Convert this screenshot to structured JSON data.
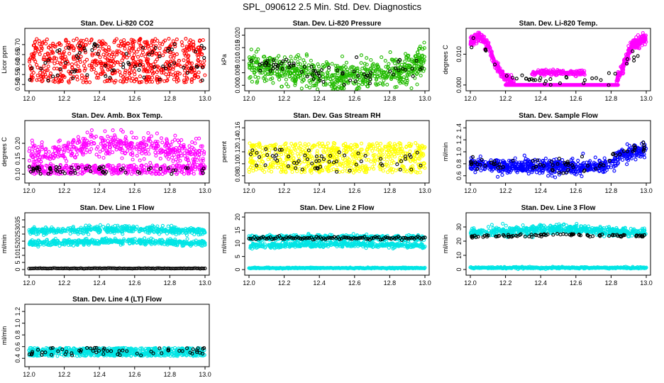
{
  "page_title": "SPL_090612  2.5 Min. Std. Dev. Diagnostics",
  "colors": {
    "red": "#ff0000",
    "green": "#22bb00",
    "magenta": "#ff00ff",
    "yellow": "#ffff00",
    "blue": "#0000ff",
    "cyan": "#00e5e5",
    "black": "#000000"
  },
  "chart_data": [
    {
      "type": "scatter",
      "title": "Stan. Dev. Li-820 CO2",
      "ylabel": "Licor ppm",
      "xlim": [
        12.0,
        13.0
      ],
      "xticks": [
        "12.0",
        "12.2",
        "12.4",
        "12.6",
        "12.8",
        "13.0"
      ],
      "ylim": [
        0.49,
        0.76
      ],
      "yticks": [
        "0.50",
        "0.55",
        "0.60",
        "0.65",
        "0.70"
      ],
      "ytick_vals": [
        0.5,
        0.55,
        0.6,
        0.65,
        0.7
      ],
      "color": "red",
      "series": [
        {
          "color": "red",
          "pattern": "band",
          "count": 700,
          "lo": 0.51,
          "hi": 0.73
        },
        {
          "color": "black",
          "pattern": "band",
          "count": 70,
          "lo": 0.52,
          "hi": 0.72
        }
      ]
    },
    {
      "type": "scatter",
      "title": "Stan. Dev. Li-820 Pressure",
      "ylabel": "kPa",
      "xlim": [
        12.0,
        13.0
      ],
      "xticks": [
        "12.0",
        "12.2",
        "12.4",
        "12.6",
        "12.8",
        "13.0"
      ],
      "ylim": [
        -0.0005,
        0.021
      ],
      "yticks": [
        "0.000",
        "0.005",
        "0.010",
        "0.015",
        "0.020"
      ],
      "ytick_vals": [
        0.0,
        0.005,
        0.01,
        0.015,
        0.02
      ],
      "series": [
        {
          "color": "green",
          "pattern": "curve",
          "count": 700,
          "curve": [
            [
              12.0,
              0.008
            ],
            [
              12.2,
              0.006
            ],
            [
              12.5,
              0.003
            ],
            [
              12.7,
              0.004
            ],
            [
              12.9,
              0.007
            ],
            [
              13.0,
              0.01
            ]
          ],
          "spread": 0.003
        },
        {
          "color": "black",
          "pattern": "curve",
          "count": 70,
          "curve": [
            [
              12.0,
              0.009
            ],
            [
              12.3,
              0.006
            ],
            [
              12.6,
              0.004
            ],
            [
              12.9,
              0.008
            ],
            [
              13.0,
              0.01
            ]
          ],
          "spread": 0.002
        }
      ]
    },
    {
      "type": "scatter",
      "title": "Stan. Dev. Li-820 Temp.",
      "ylabel": "degrees C",
      "xlim": [
        12.0,
        13.0
      ],
      "xticks": [
        "12.0",
        "12.2",
        "12.4",
        "12.6",
        "12.8",
        "13.0"
      ],
      "ylim": [
        -0.0005,
        0.017
      ],
      "yticks": [
        "0.000",
        "0.010"
      ],
      "ytick_vals": [
        0.0,
        0.01
      ],
      "series": [
        {
          "color": "magenta",
          "pattern": "curve",
          "count": 260,
          "curve": [
            [
              12.0,
              0.014
            ],
            [
              12.05,
              0.016
            ],
            [
              12.1,
              0.013
            ],
            [
              12.15,
              0.006
            ],
            [
              12.2,
              0.002
            ],
            [
              12.25,
              0.001
            ]
          ],
          "spread": 0.0008
        },
        {
          "color": "magenta",
          "pattern": "curve",
          "count": 260,
          "curve": [
            [
              12.83,
              0.001
            ],
            [
              12.87,
              0.006
            ],
            [
              12.92,
              0.013
            ],
            [
              13.0,
              0.015
            ]
          ],
          "spread": 0.0008
        },
        {
          "color": "magenta",
          "pattern": "line",
          "count": 160,
          "x0": 12.35,
          "x1": 12.65,
          "y": 0.004,
          "spread": 0.0004
        },
        {
          "color": "magenta",
          "pattern": "line",
          "count": 260,
          "x0": 12.2,
          "x1": 12.84,
          "y": 0.0,
          "spread": 0.0
        },
        {
          "color": "black",
          "pattern": "curve",
          "count": 40,
          "curve": [
            [
              12.0,
              0.015
            ],
            [
              12.1,
              0.012
            ],
            [
              12.2,
              0.003
            ],
            [
              12.4,
              0.001
            ],
            [
              12.8,
              0.002
            ],
            [
              12.9,
              0.009
            ],
            [
              13.0,
              0.01
            ]
          ],
          "spread": 0.001
        }
      ]
    },
    {
      "type": "scatter",
      "title": "Stan. Dev. Amb. Box Temp.",
      "ylabel": "degrees C",
      "xlim": [
        12.0,
        13.0
      ],
      "xticks": [
        "12.0",
        "12.2",
        "12.4",
        "12.6",
        "12.8",
        "13.0"
      ],
      "ylim": [
        0.085,
        0.26
      ],
      "yticks": [
        "0.10",
        "0.15",
        "0.20"
      ],
      "ytick_vals": [
        0.1,
        0.15,
        0.2
      ],
      "series": [
        {
          "color": "magenta",
          "pattern": "curve",
          "count": 450,
          "curve": [
            [
              12.0,
              0.16
            ],
            [
              12.3,
              0.19
            ],
            [
              12.5,
              0.2
            ],
            [
              12.7,
              0.19
            ],
            [
              13.0,
              0.16
            ]
          ],
          "spread": 0.02
        },
        {
          "color": "magenta",
          "pattern": "band",
          "count": 350,
          "lo": 0.1,
          "hi": 0.13
        },
        {
          "color": "black",
          "pattern": "band",
          "count": 60,
          "lo": 0.1,
          "hi": 0.125
        }
      ]
    },
    {
      "type": "scatter",
      "title": "Stan. Dev. Gas Stream RH",
      "ylabel": "percent",
      "xlim": [
        12.0,
        13.0
      ],
      "xticks": [
        "12.0",
        "12.2",
        "12.4",
        "12.6",
        "12.8",
        "13.0"
      ],
      "ylim": [
        0.075,
        0.165
      ],
      "yticks": [
        "0.08",
        "0.10",
        "0.12",
        "0.14",
        "0.16"
      ],
      "ytick_vals": [
        0.08,
        0.1,
        0.12,
        0.14,
        0.16
      ],
      "series": [
        {
          "color": "yellow",
          "pattern": "band",
          "count": 650,
          "lo": 0.085,
          "hi": 0.135
        },
        {
          "color": "black",
          "pattern": "band",
          "count": 60,
          "lo": 0.085,
          "hi": 0.125
        }
      ]
    },
    {
      "type": "scatter",
      "title": "Stan. Dev. Sample Flow",
      "ylabel": "ml/min",
      "xlim": [
        12.0,
        13.0
      ],
      "xticks": [
        "12.0",
        "12.2",
        "12.4",
        "12.6",
        "12.8",
        "13.0"
      ],
      "ylim": [
        0.55,
        1.45
      ],
      "yticks": [
        "0.6",
        "0.8",
        "1.0",
        "1.2",
        "1.4"
      ],
      "ytick_vals": [
        0.6,
        0.8,
        1.0,
        1.2,
        1.4
      ],
      "series": [
        {
          "color": "blue",
          "pattern": "curve",
          "count": 700,
          "curve": [
            [
              12.0,
              0.8
            ],
            [
              12.3,
              0.74
            ],
            [
              12.6,
              0.74
            ],
            [
              12.78,
              0.76
            ],
            [
              12.85,
              0.95
            ],
            [
              13.0,
              1.05
            ]
          ],
          "spread": 0.06
        },
        {
          "color": "black",
          "pattern": "curve",
          "count": 70,
          "curve": [
            [
              12.0,
              0.82
            ],
            [
              12.4,
              0.75
            ],
            [
              12.75,
              0.78
            ],
            [
              12.85,
              0.98
            ],
            [
              13.0,
              1.05
            ]
          ],
          "spread": 0.05
        }
      ]
    },
    {
      "type": "scatter",
      "title": "Stan. Dev. Line 1 Flow",
      "ylabel": "ml/min",
      "xlim": [
        12.0,
        13.0
      ],
      "xticks": [
        "12.0",
        "12.2",
        "12.4",
        "12.6",
        "12.8",
        "13.0"
      ],
      "ylim": [
        -1,
        37
      ],
      "yticks": [
        "0",
        "5",
        "10",
        "15",
        "20",
        "25",
        "30",
        "35"
      ],
      "ytick_vals": [
        0,
        5,
        10,
        15,
        20,
        25,
        30,
        35
      ],
      "series": [
        {
          "color": "cyan",
          "pattern": "curve",
          "count": 450,
          "curve": [
            [
              12.0,
              27
            ],
            [
              12.5,
              28.5
            ],
            [
              13.0,
              27
            ]
          ],
          "spread": 1.2
        },
        {
          "color": "cyan",
          "pattern": "curve",
          "count": 450,
          "curve": [
            [
              12.0,
              18.5
            ],
            [
              12.5,
              20
            ],
            [
              13.0,
              18.5
            ]
          ],
          "spread": 1.0
        },
        {
          "color": "black",
          "pattern": "line",
          "count": 110,
          "x0": 12.0,
          "x1": 13.0,
          "y": 0.8,
          "spread": 0.1
        }
      ]
    },
    {
      "type": "scatter",
      "title": "Stan. Dev. Line 2 Flow",
      "ylabel": "ml/min",
      "xlim": [
        12.0,
        13.0
      ],
      "xticks": [
        "12.0",
        "12.2",
        "12.4",
        "12.6",
        "12.8",
        "13.0"
      ],
      "ylim": [
        -0.5,
        20
      ],
      "yticks": [
        "0",
        "5",
        "10",
        "15",
        "20"
      ],
      "ytick_vals": [
        0,
        5,
        10,
        15,
        20
      ],
      "series": [
        {
          "color": "cyan",
          "pattern": "curve",
          "count": 450,
          "curve": [
            [
              12.0,
              12
            ],
            [
              12.5,
              12.3
            ],
            [
              13.0,
              12
            ]
          ],
          "spread": 0.5
        },
        {
          "color": "cyan",
          "pattern": "curve",
          "count": 450,
          "curve": [
            [
              12.0,
              9
            ],
            [
              12.5,
              9.8
            ],
            [
              13.0,
              9
            ]
          ],
          "spread": 0.5
        },
        {
          "color": "cyan",
          "pattern": "line",
          "count": 300,
          "x0": 12.0,
          "x1": 13.0,
          "y": 0.6,
          "spread": 0.1
        },
        {
          "color": "black",
          "pattern": "line",
          "count": 100,
          "x0": 12.0,
          "x1": 13.0,
          "y": 12,
          "spread": 0.3
        }
      ]
    },
    {
      "type": "scatter",
      "title": "Stan. Dev. Line 3 Flow",
      "ylabel": "ml/min",
      "xlim": [
        12.0,
        13.0
      ],
      "xticks": [
        "12.0",
        "12.2",
        "12.4",
        "12.6",
        "12.8",
        "13.0"
      ],
      "ylim": [
        -1,
        37
      ],
      "yticks": [
        "0",
        "10",
        "20",
        "30"
      ],
      "ytick_vals": [
        0,
        10,
        20,
        30
      ],
      "series": [
        {
          "color": "cyan",
          "pattern": "curve",
          "count": 600,
          "curve": [
            [
              12.0,
              26
            ],
            [
              12.5,
              28.5
            ],
            [
              13.0,
              26
            ]
          ],
          "spread": 1.5
        },
        {
          "color": "cyan",
          "pattern": "line",
          "count": 300,
          "x0": 12.0,
          "x1": 13.0,
          "y": 1.2,
          "spread": 0.3
        },
        {
          "color": "black",
          "pattern": "curve",
          "count": 90,
          "curve": [
            [
              12.0,
              23
            ],
            [
              12.5,
              24.5
            ],
            [
              13.0,
              24
            ]
          ],
          "spread": 0.5
        }
      ]
    },
    {
      "type": "scatter",
      "title": "Stan. Dev. Line 4 (LT) Flow",
      "ylabel": "ml/min",
      "xlim": [
        12.0,
        13.0
      ],
      "xticks": [
        "12.0",
        "12.2",
        "12.4",
        "12.6",
        "12.8",
        "13.0"
      ],
      "ylim": [
        0.33,
        1.25
      ],
      "yticks": [
        "0.4",
        "0.6",
        "0.8",
        "1.0",
        "1.2"
      ],
      "ytick_vals": [
        0.4,
        0.6,
        0.8,
        1.0,
        1.2
      ],
      "series": [
        {
          "color": "cyan",
          "pattern": "band",
          "count": 650,
          "lo": 0.44,
          "hi": 0.58
        },
        {
          "color": "black",
          "pattern": "band",
          "count": 60,
          "lo": 0.45,
          "hi": 0.58
        }
      ]
    }
  ]
}
